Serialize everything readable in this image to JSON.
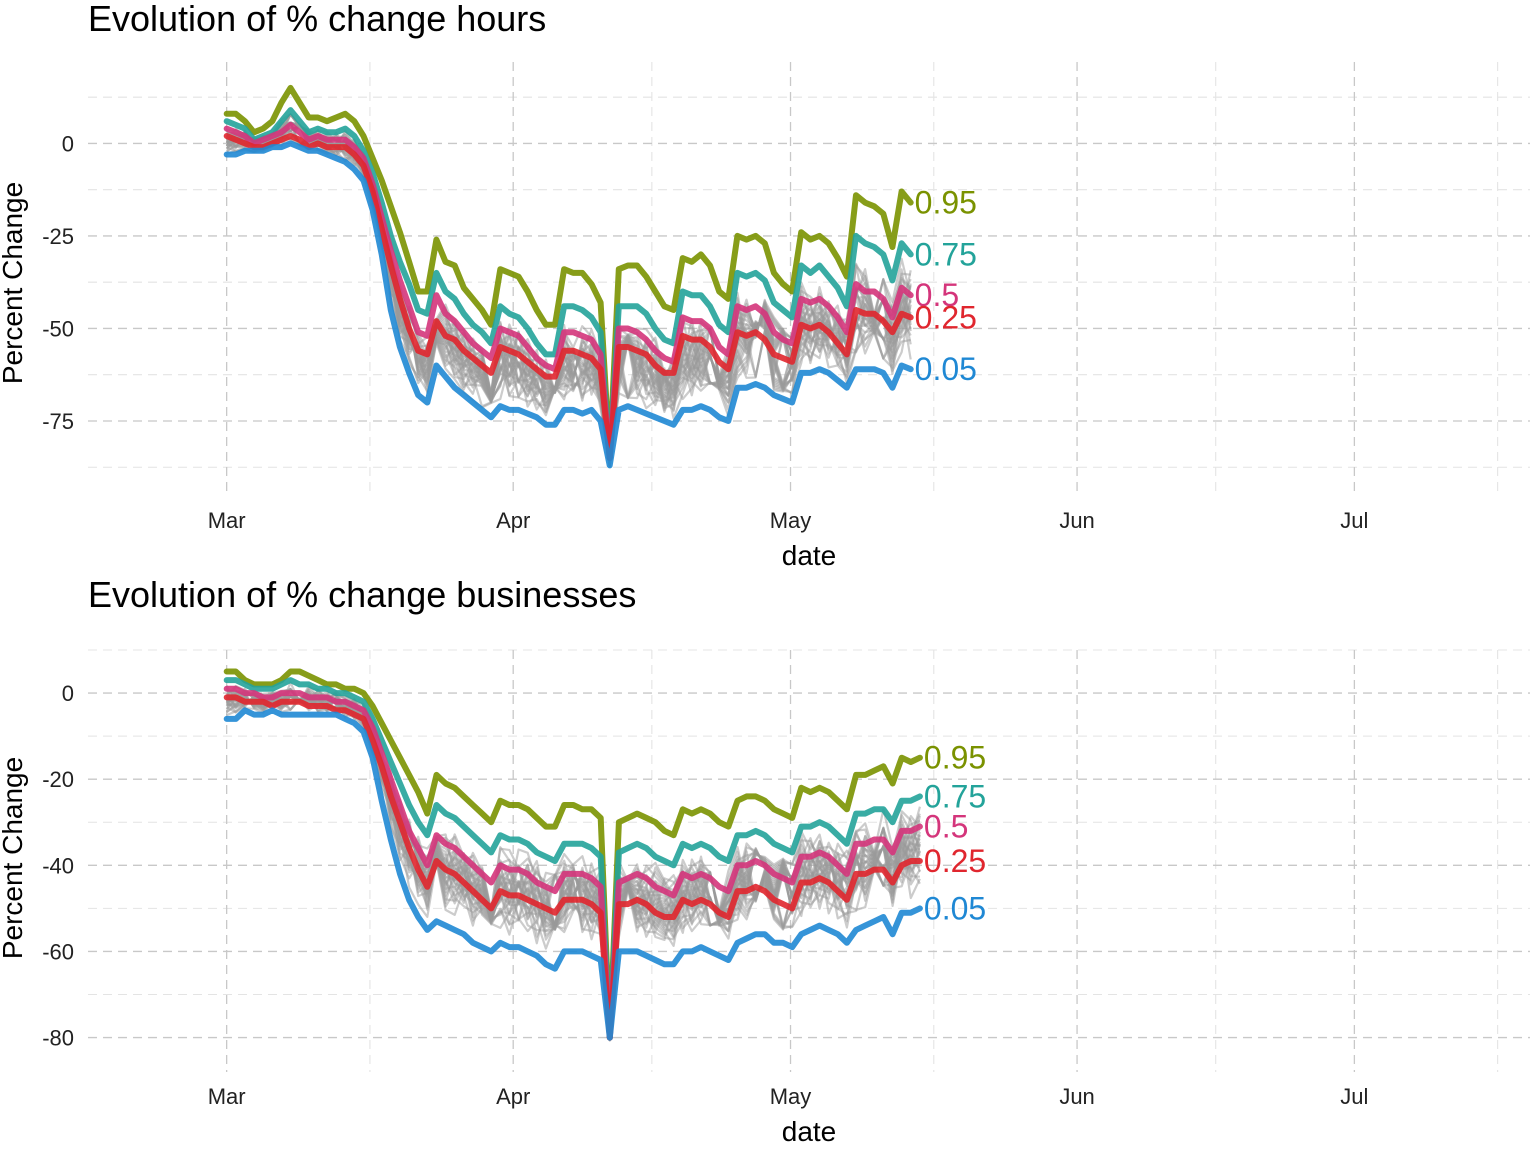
{
  "chart_data": [
    {
      "type": "line",
      "title": "Evolution of % change hours",
      "xlabel": "date",
      "ylabel": "Percent Change",
      "x_range": [
        "2020-02-15",
        "2020-07-20"
      ],
      "x_ticks": [
        "2020-03-01",
        "2020-04-01",
        "2020-05-01",
        "2020-06-01",
        "2020-07-01"
      ],
      "x_tick_labels": [
        "Mar",
        "Apr",
        "May",
        "Jun",
        "Jul"
      ],
      "ylim": [
        -95,
        22
      ],
      "y_ticks": [
        0,
        -25,
        -50,
        -75
      ],
      "y_tick_labels": [
        "0",
        "-25",
        "-50",
        "-75"
      ],
      "grid": true,
      "x_start": "2020-03-01",
      "x_end": "2020-05-14",
      "background_count": 30,
      "quantiles": [
        {
          "name": "0.95",
          "color": "#7a9200",
          "values": [
            8,
            8,
            6,
            3,
            4,
            6,
            11,
            15,
            11,
            7,
            7,
            6,
            7,
            8,
            6,
            2,
            -4,
            -10,
            -17,
            -24,
            -32,
            -40,
            -40,
            -26,
            -32,
            -33,
            -39,
            -42,
            -45,
            -49,
            -34,
            -35,
            -36,
            -40,
            -45,
            -49,
            -49,
            -34,
            -35,
            -35,
            -38,
            -43,
            -85,
            -34,
            -33,
            -33,
            -36,
            -40,
            -44,
            -45,
            -31,
            -32,
            -30,
            -33,
            -40,
            -42,
            -25,
            -26,
            -25,
            -27,
            -35,
            -38,
            -40,
            -24,
            -26,
            -25,
            -27,
            -31,
            -36,
            -14,
            -16,
            -17,
            -19,
            -28,
            -13,
            -16
          ]
        },
        {
          "name": "0.75",
          "color": "#23a39a",
          "values": [
            6,
            5,
            4,
            1,
            2,
            3,
            6,
            9,
            6,
            3,
            4,
            3,
            3,
            4,
            2,
            -2,
            -8,
            -16,
            -25,
            -32,
            -38,
            -45,
            -46,
            -35,
            -40,
            -42,
            -46,
            -49,
            -51,
            -54,
            -44,
            -46,
            -47,
            -50,
            -54,
            -57,
            -57,
            -44,
            -44,
            -45,
            -47,
            -51,
            -85,
            -44,
            -44,
            -44,
            -46,
            -50,
            -53,
            -54,
            -40,
            -41,
            -41,
            -44,
            -49,
            -51,
            -35,
            -36,
            -35,
            -37,
            -43,
            -45,
            -47,
            -33,
            -35,
            -33,
            -36,
            -39,
            -44,
            -25,
            -27,
            -28,
            -30,
            -37,
            -27,
            -30
          ]
        },
        {
          "name": "0.5",
          "color": "#d4357b",
          "values": [
            4,
            3,
            2,
            0,
            1,
            2,
            3,
            5,
            3,
            1,
            2,
            1,
            1,
            1,
            -1,
            -4,
            -11,
            -20,
            -29,
            -37,
            -44,
            -51,
            -52,
            -41,
            -46,
            -48,
            -51,
            -54,
            -56,
            -58,
            -50,
            -51,
            -52,
            -55,
            -58,
            -60,
            -61,
            -51,
            -51,
            -52,
            -53,
            -57,
            -85,
            -50,
            -50,
            -51,
            -53,
            -56,
            -58,
            -59,
            -47,
            -48,
            -48,
            -50,
            -55,
            -57,
            -44,
            -45,
            -44,
            -46,
            -51,
            -53,
            -54,
            -42,
            -43,
            -42,
            -44,
            -47,
            -51,
            -38,
            -40,
            -40,
            -42,
            -47,
            -39,
            -41
          ]
        },
        {
          "name": "0.25",
          "color": "#e0262e",
          "values": [
            2,
            1,
            0,
            -1,
            -1,
            0,
            1,
            2,
            1,
            -1,
            0,
            -1,
            -1,
            -1,
            -3,
            -6,
            -13,
            -23,
            -33,
            -42,
            -50,
            -56,
            -57,
            -48,
            -52,
            -53,
            -56,
            -58,
            -60,
            -62,
            -55,
            -56,
            -57,
            -59,
            -61,
            -63,
            -63,
            -56,
            -56,
            -57,
            -58,
            -61,
            -85,
            -55,
            -55,
            -56,
            -57,
            -60,
            -62,
            -62,
            -52,
            -53,
            -53,
            -55,
            -59,
            -61,
            -51,
            -52,
            -51,
            -53,
            -57,
            -58,
            -59,
            -49,
            -50,
            -49,
            -51,
            -54,
            -57,
            -45,
            -46,
            -46,
            -48,
            -51,
            -46,
            -47
          ]
        },
        {
          "name": "0.05",
          "color": "#1f88d4",
          "values": [
            -3,
            -3,
            -2,
            -2,
            -2,
            -1,
            -1,
            0,
            -1,
            -2,
            -2,
            -3,
            -4,
            -5,
            -7,
            -10,
            -18,
            -30,
            -45,
            -55,
            -62,
            -68,
            -70,
            -60,
            -63,
            -66,
            -68,
            -70,
            -72,
            -74,
            -71,
            -72,
            -72,
            -73,
            -74,
            -76,
            -76,
            -72,
            -72,
            -73,
            -72,
            -75,
            -87,
            -72,
            -71,
            -72,
            -73,
            -74,
            -75,
            -76,
            -72,
            -72,
            -71,
            -72,
            -74,
            -75,
            -66,
            -66,
            -65,
            -66,
            -68,
            -69,
            -70,
            -62,
            -62,
            -61,
            -62,
            -64,
            -66,
            -61,
            -61,
            -61,
            -62,
            -66,
            -60,
            -61
          ]
        }
      ]
    },
    {
      "type": "line",
      "title": "Evolution of % change businesses",
      "xlabel": "date",
      "ylabel": "Percent Change",
      "x_range": [
        "2020-02-15",
        "2020-07-20"
      ],
      "x_ticks": [
        "2020-03-01",
        "2020-04-01",
        "2020-05-01",
        "2020-06-01",
        "2020-07-01"
      ],
      "x_tick_labels": [
        "Mar",
        "Apr",
        "May",
        "Jun",
        "Jul"
      ],
      "ylim": [
        -88,
        10
      ],
      "y_ticks": [
        0,
        -20,
        -40,
        -60,
        -80
      ],
      "y_tick_labels": [
        "0",
        "-20",
        "-40",
        "-60",
        "-80"
      ],
      "grid": true,
      "x_start": "2020-03-01",
      "x_end": "2020-05-15",
      "background_count": 30,
      "quantiles": [
        {
          "name": "0.95",
          "color": "#7a9200",
          "values": [
            5,
            5,
            3,
            2,
            2,
            2,
            3,
            5,
            5,
            4,
            3,
            2,
            2,
            1,
            1,
            0,
            -3,
            -7,
            -11,
            -15,
            -19,
            -23,
            -28,
            -19,
            -21,
            -22,
            -24,
            -26,
            -28,
            -30,
            -25,
            -26,
            -26,
            -27,
            -29,
            -31,
            -31,
            -26,
            -26,
            -27,
            -27,
            -29,
            -80,
            -30,
            -29,
            -28,
            -29,
            -30,
            -32,
            -33,
            -27,
            -28,
            -27,
            -28,
            -30,
            -31,
            -25,
            -24,
            -24,
            -25,
            -27,
            -28,
            -29,
            -22,
            -23,
            -22,
            -23,
            -25,
            -27,
            -19,
            -19,
            -18,
            -17,
            -21,
            -15,
            -16,
            -15
          ]
        },
        {
          "name": "0.75",
          "color": "#23a39a",
          "values": [
            3,
            3,
            2,
            1,
            1,
            1,
            2,
            3,
            2,
            2,
            1,
            1,
            0,
            0,
            -1,
            -2,
            -6,
            -11,
            -16,
            -21,
            -26,
            -30,
            -33,
            -26,
            -28,
            -29,
            -31,
            -33,
            -35,
            -37,
            -33,
            -34,
            -34,
            -35,
            -37,
            -38,
            -39,
            -35,
            -35,
            -35,
            -36,
            -38,
            -80,
            -37,
            -36,
            -35,
            -36,
            -38,
            -39,
            -40,
            -35,
            -36,
            -35,
            -36,
            -38,
            -39,
            -33,
            -33,
            -32,
            -33,
            -35,
            -36,
            -37,
            -31,
            -31,
            -30,
            -31,
            -33,
            -35,
            -28,
            -28,
            -27,
            -27,
            -30,
            -25,
            -25,
            -24
          ]
        },
        {
          "name": "0.5",
          "color": "#d4357b",
          "values": [
            1,
            1,
            0,
            0,
            -1,
            -1,
            0,
            0,
            0,
            -1,
            -1,
            -1,
            -2,
            -2,
            -3,
            -4,
            -8,
            -14,
            -20,
            -26,
            -32,
            -36,
            -40,
            -33,
            -35,
            -36,
            -38,
            -40,
            -42,
            -44,
            -40,
            -41,
            -41,
            -42,
            -44,
            -45,
            -46,
            -42,
            -42,
            -42,
            -43,
            -45,
            -80,
            -44,
            -43,
            -42,
            -43,
            -45,
            -46,
            -47,
            -42,
            -43,
            -42,
            -43,
            -45,
            -46,
            -40,
            -40,
            -39,
            -40,
            -42,
            -43,
            -44,
            -38,
            -38,
            -37,
            -38,
            -40,
            -42,
            -35,
            -35,
            -34,
            -34,
            -37,
            -32,
            -32,
            -31
          ]
        },
        {
          "name": "0.25",
          "color": "#e0262e",
          "values": [
            -1,
            -1,
            -2,
            -2,
            -2,
            -3,
            -2,
            -2,
            -2,
            -3,
            -3,
            -3,
            -4,
            -4,
            -5,
            -6,
            -11,
            -17,
            -24,
            -30,
            -36,
            -41,
            -45,
            -39,
            -41,
            -42,
            -44,
            -46,
            -48,
            -50,
            -46,
            -47,
            -47,
            -48,
            -49,
            -50,
            -51,
            -48,
            -48,
            -48,
            -49,
            -51,
            -80,
            -49,
            -49,
            -48,
            -49,
            -51,
            -52,
            -52,
            -48,
            -49,
            -48,
            -49,
            -51,
            -52,
            -46,
            -46,
            -45,
            -46,
            -48,
            -49,
            -50,
            -44,
            -44,
            -43,
            -44,
            -46,
            -48,
            -42,
            -42,
            -41,
            -41,
            -44,
            -40,
            -39,
            -39
          ]
        },
        {
          "name": "0.05",
          "color": "#1f88d4",
          "values": [
            -6,
            -6,
            -4,
            -5,
            -5,
            -4,
            -5,
            -5,
            -5,
            -5,
            -5,
            -5,
            -5,
            -6,
            -7,
            -9,
            -15,
            -25,
            -34,
            -42,
            -48,
            -52,
            -55,
            -53,
            -54,
            -55,
            -56,
            -58,
            -59,
            -60,
            -58,
            -59,
            -59,
            -60,
            -61,
            -63,
            -64,
            -60,
            -60,
            -60,
            -61,
            -62,
            -80,
            -60,
            -60,
            -60,
            -61,
            -62,
            -63,
            -63,
            -60,
            -60,
            -59,
            -60,
            -61,
            -62,
            -58,
            -57,
            -56,
            -56,
            -58,
            -58,
            -59,
            -56,
            -55,
            -54,
            -55,
            -56,
            -58,
            -55,
            -54,
            -53,
            -52,
            -56,
            -51,
            -51,
            -50
          ]
        }
      ]
    }
  ]
}
